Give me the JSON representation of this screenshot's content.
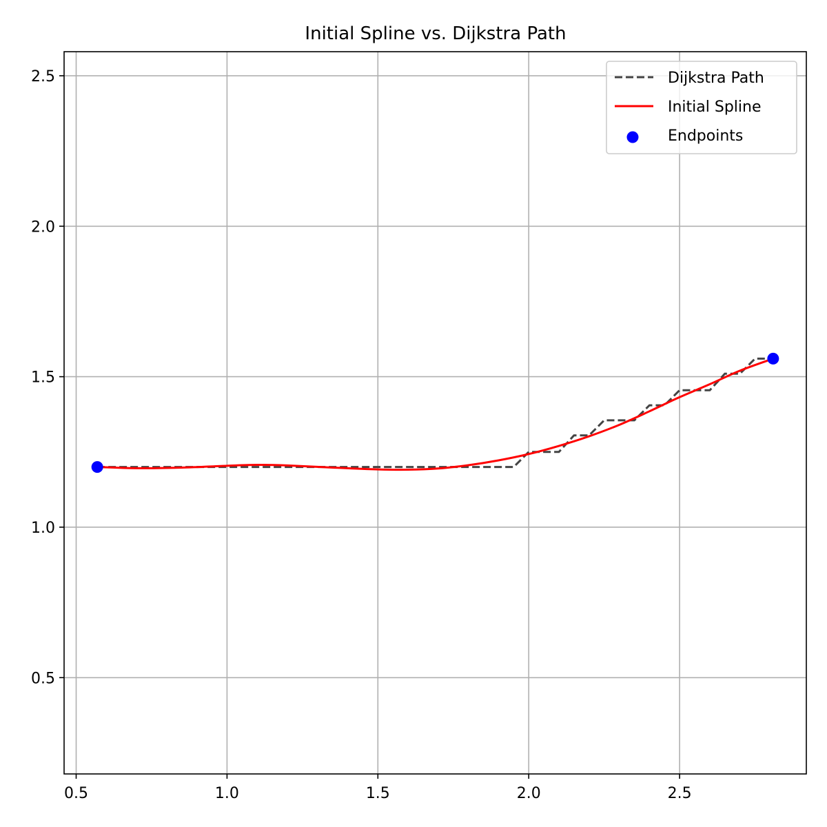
{
  "chart_data": {
    "type": "line",
    "title": "Initial Spline vs. Dijkstra Path",
    "xlabel": "",
    "ylabel": "",
    "xlim": [
      0.46,
      2.92
    ],
    "ylim": [
      0.18,
      2.58
    ],
    "xticks": [
      0.5,
      1.0,
      1.5,
      2.0,
      2.5
    ],
    "xtick_labels": [
      "0.5",
      "1.0",
      "1.5",
      "2.0",
      "2.5"
    ],
    "yticks": [
      0.5,
      1.0,
      1.5,
      2.0,
      2.5
    ],
    "ytick_labels": [
      "0.5",
      "1.0",
      "1.5",
      "2.0",
      "2.5"
    ],
    "grid": true,
    "legend_position": "top-right",
    "series": [
      {
        "name": "Dijkstra Path",
        "style": "dashed",
        "color": "#444444",
        "x": [
          0.57,
          1.95,
          2.0,
          2.1,
          2.15,
          2.2,
          2.25,
          2.35,
          2.4,
          2.45,
          2.5,
          2.6,
          2.65,
          2.7,
          2.75,
          2.81
        ],
        "y": [
          1.2,
          1.2,
          1.25,
          1.25,
          1.305,
          1.305,
          1.355,
          1.355,
          1.405,
          1.405,
          1.455,
          1.455,
          1.51,
          1.51,
          1.56,
          1.56
        ]
      },
      {
        "name": "Initial Spline",
        "style": "solid",
        "color": "#ff0000",
        "x": [
          0.57,
          0.7,
          0.85,
          1.0,
          1.1,
          1.2,
          1.35,
          1.5,
          1.6,
          1.7,
          1.8,
          1.9,
          2.0,
          2.1,
          2.2,
          2.3,
          2.4,
          2.5,
          2.6,
          2.7,
          2.81
        ],
        "y": [
          1.2,
          1.196,
          1.198,
          1.204,
          1.207,
          1.205,
          1.198,
          1.192,
          1.191,
          1.195,
          1.206,
          1.222,
          1.243,
          1.27,
          1.302,
          1.34,
          1.385,
          1.432,
          1.475,
          1.52,
          1.56
        ]
      },
      {
        "name": "Endpoints",
        "style": "scatter",
        "color": "#0000ff",
        "x": [
          0.57,
          2.81
        ],
        "y": [
          1.2,
          1.56
        ]
      }
    ]
  }
}
